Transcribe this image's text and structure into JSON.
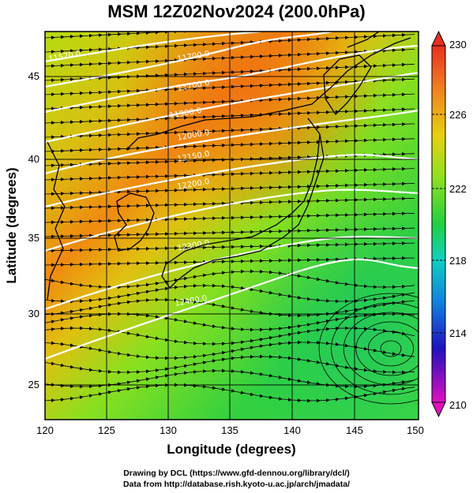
{
  "title": "MSM 12Z02Nov2024 (200.0hPa)",
  "axes": {
    "x_label": "Longitude (degrees)",
    "y_label": "Latitude  (degrees)",
    "x_ticks": [
      "120",
      "125",
      "130",
      "135",
      "140",
      "145",
      "150"
    ],
    "y_ticks": [
      "25",
      "30",
      "35",
      "40",
      "45"
    ]
  },
  "colorbar": {
    "ticks": [
      "230",
      "226",
      "222",
      "218",
      "214",
      "210"
    ]
  },
  "contour_labels": [
    "11520.0",
    "11700.0",
    "11700.0",
    "11900.0",
    "12000.0",
    "12150.0",
    "12200.0",
    "12300.0",
    "12400.0"
  ],
  "credits": {
    "line1": "Drawing by DCL (https://www.gfd-dennou.org/library/dcl/)",
    "line2": "Data from http://database.rish.kyoto-u.ac.jp/arch/jmadata/"
  },
  "colors": {
    "warm": "#f07a10",
    "mid": "#c8e000",
    "cool": "#20d040",
    "colorbar_top": "#e83020",
    "colorbar_bottom": "#e010c0"
  }
}
